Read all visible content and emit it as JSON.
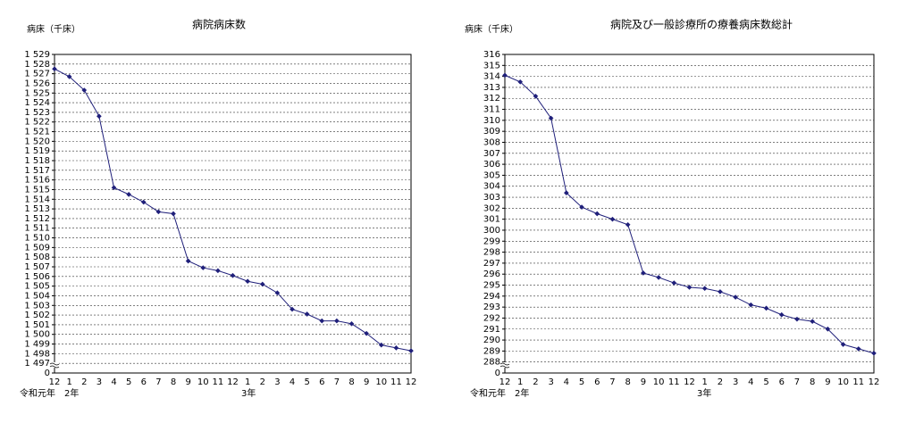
{
  "chart_data": [
    {
      "type": "line",
      "title": "病院病床数",
      "y_label": "病床（千床）",
      "categories": [
        "12",
        "1",
        "2",
        "3",
        "4",
        "5",
        "6",
        "7",
        "8",
        "9",
        "10",
        "11",
        "12",
        "1",
        "2",
        "3",
        "4",
        "5",
        "6",
        "7",
        "8",
        "9",
        "10",
        "11",
        "12"
      ],
      "x_group_labels": [
        "令和元年　2年",
        "3年"
      ],
      "values": [
        1527.5,
        1526.7,
        1525.3,
        1522.6,
        1515.2,
        1514.5,
        1513.7,
        1512.7,
        1512.5,
        1507.6,
        1506.9,
        1506.6,
        1506.1,
        1505.5,
        1505.2,
        1504.3,
        1502.6,
        1502.1,
        1501.4,
        1501.4,
        1501.1,
        1500.1,
        1498.9,
        1498.6,
        1498.3
      ],
      "color": "#1f1f7a",
      "ylim": [
        1496,
        1529
      ],
      "axis_break": true,
      "grid": true,
      "yticks": [
        0,
        {
          "value": 1497,
          "label": "1 497"
        },
        {
          "value": 1498,
          "label": "1 498"
        },
        {
          "value": 1499,
          "label": "1 499"
        },
        {
          "value": 1500,
          "label": "1 500"
        },
        {
          "value": 1501,
          "label": "1 501"
        },
        {
          "value": 1502,
          "label": "1 502"
        },
        {
          "value": 1503,
          "label": "1 503"
        },
        {
          "value": 1504,
          "label": "1 504"
        },
        {
          "value": 1505,
          "label": "1 505"
        },
        {
          "value": 1506,
          "label": "1 506"
        },
        {
          "value": 1507,
          "label": "1 507"
        },
        {
          "value": 1508,
          "label": "1 508"
        },
        {
          "value": 1509,
          "label": "1 509"
        },
        {
          "value": 1510,
          "label": "1 510"
        },
        {
          "value": 1511,
          "label": "1 511"
        },
        {
          "value": 1512,
          "label": "1 512"
        },
        {
          "value": 1513,
          "label": "1 513"
        },
        {
          "value": 1514,
          "label": "1 514"
        },
        {
          "value": 1515,
          "label": "1 515"
        },
        {
          "value": 1516,
          "label": "1 516"
        },
        {
          "value": 1517,
          "label": "1 517"
        },
        {
          "value": 1518,
          "label": "1 518"
        },
        {
          "value": 1519,
          "label": "1 519"
        },
        {
          "value": 1520,
          "label": "1 520"
        },
        {
          "value": 1521,
          "label": "1 521"
        },
        {
          "value": 1522,
          "label": "1 522"
        },
        {
          "value": 1523,
          "label": "1 523"
        },
        {
          "value": 1524,
          "label": "1 524"
        },
        {
          "value": 1525,
          "label": "1 525"
        },
        {
          "value": 1526,
          "label": "1 526"
        },
        {
          "value": 1527,
          "label": "1 527"
        },
        {
          "value": 1528,
          "label": "1 528"
        },
        {
          "value": 1529,
          "label": "1 529"
        }
      ]
    },
    {
      "type": "line",
      "title": "病院及び一般診療所の療養病床数総計",
      "y_label": "病床（千床）",
      "categories": [
        "12",
        "1",
        "2",
        "3",
        "4",
        "5",
        "6",
        "7",
        "8",
        "9",
        "10",
        "11",
        "12",
        "1",
        "2",
        "3",
        "4",
        "5",
        "6",
        "7",
        "8",
        "9",
        "10",
        "11",
        "12"
      ],
      "x_group_labels": [
        "令和元年　2年",
        "3年"
      ],
      "values": [
        314.1,
        313.5,
        312.2,
        310.2,
        303.4,
        302.1,
        301.5,
        301.0,
        300.5,
        296.1,
        295.7,
        295.2,
        294.8,
        294.7,
        294.4,
        293.9,
        293.2,
        292.9,
        292.3,
        291.9,
        291.7,
        291.0,
        289.6,
        289.2,
        288.8
      ],
      "color": "#1f1f7a",
      "ylim": [
        287,
        316
      ],
      "axis_break": true,
      "grid": true,
      "yticks": [
        0,
        288,
        289,
        290,
        291,
        292,
        293,
        294,
        295,
        296,
        297,
        298,
        299,
        300,
        301,
        302,
        303,
        304,
        305,
        306,
        307,
        308,
        309,
        310,
        311,
        312,
        313,
        314,
        315,
        316
      ]
    }
  ]
}
